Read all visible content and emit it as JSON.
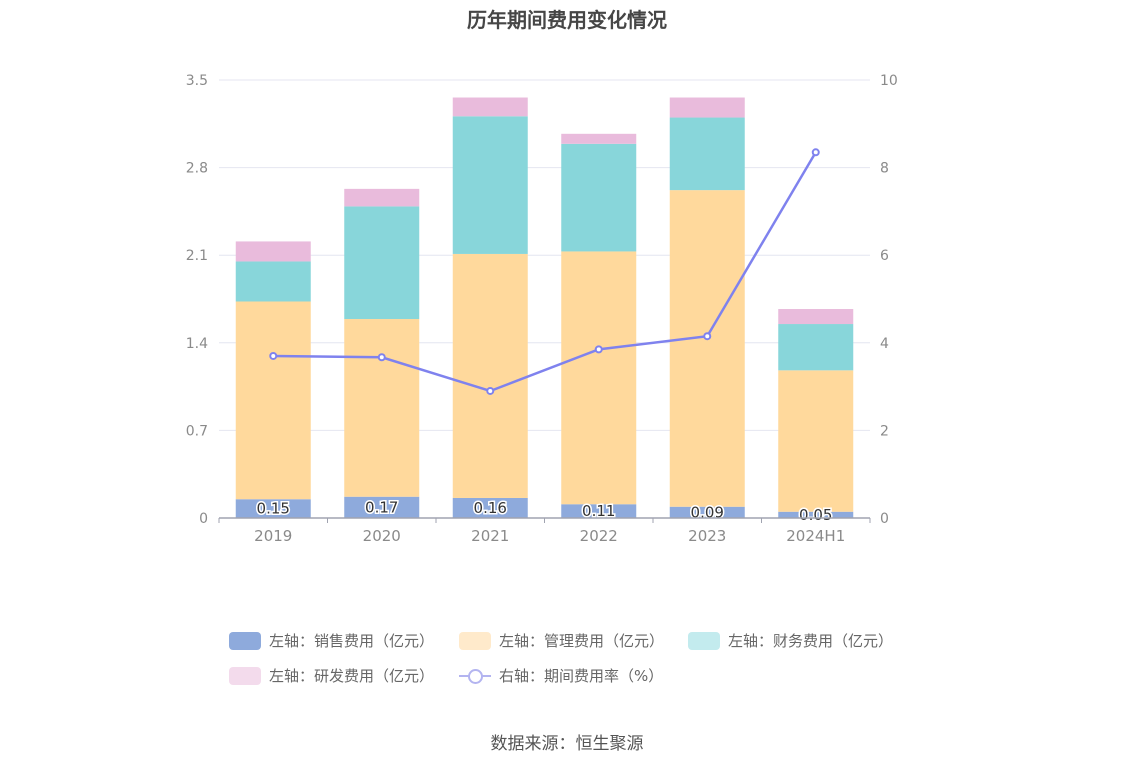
{
  "title": "历年期间费用变化情况",
  "source": "数据来源：恒生聚源",
  "chart_data": {
    "type": "bar",
    "stacked": true,
    "categories": [
      "2019",
      "2020",
      "2021",
      "2022",
      "2023",
      "2024H1"
    ],
    "y_left": {
      "ticks": [
        "0",
        "0.7",
        "1.4",
        "2.1",
        "2.8",
        "3.5"
      ],
      "range": [
        0,
        3.5
      ]
    },
    "y_right": {
      "ticks": [
        "0",
        "2",
        "4",
        "6",
        "8",
        "10"
      ],
      "range": [
        0,
        10
      ]
    },
    "grid": true,
    "legend_position": "bottom",
    "series": [
      {
        "name": "左轴：销售费用（亿元）",
        "axis": "left",
        "type": "bar",
        "color": "#8eaadc",
        "values": [
          0.15,
          0.17,
          0.16,
          0.11,
          0.09,
          0.05
        ],
        "labels": [
          "0.15",
          "0.17",
          "0.16",
          "0.11",
          "0.09",
          "0.05"
        ]
      },
      {
        "name": "左轴：管理费用（亿元）",
        "axis": "left",
        "type": "bar",
        "color": "#ffd99c",
        "values": [
          1.58,
          1.42,
          1.95,
          2.02,
          2.53,
          1.13
        ]
      },
      {
        "name": "左轴：财务费用（亿元）",
        "axis": "left",
        "type": "bar",
        "color": "#88d6da",
        "values": [
          0.32,
          0.9,
          1.1,
          0.86,
          0.58,
          0.37
        ]
      },
      {
        "name": "左轴：研发费用（亿元）",
        "axis": "left",
        "type": "bar",
        "color": "#e9bbdc",
        "values": [
          0.16,
          0.14,
          0.15,
          0.08,
          0.16,
          0.12
        ]
      },
      {
        "name": "右轴：期间费用率（%）",
        "axis": "right",
        "type": "line",
        "color": "#7f82ee",
        "values": [
          3.7,
          3.67,
          2.9,
          3.85,
          4.15,
          8.35
        ]
      }
    ]
  },
  "legend": [
    {
      "label": "左轴：销售费用（亿元）",
      "color": "#8eaadc",
      "kind": "box"
    },
    {
      "label": "左轴：管理费用（亿元）",
      "color": "#ffeacb",
      "kind": "box"
    },
    {
      "label": "左轴：财务费用（亿元）",
      "color": "#c3ebee",
      "kind": "box"
    },
    {
      "label": "左轴：研发费用（亿元）",
      "color": "#f3dbec",
      "kind": "box"
    },
    {
      "label": "右轴：期间费用率（%）",
      "color": "#b3b4f0",
      "kind": "line"
    }
  ]
}
